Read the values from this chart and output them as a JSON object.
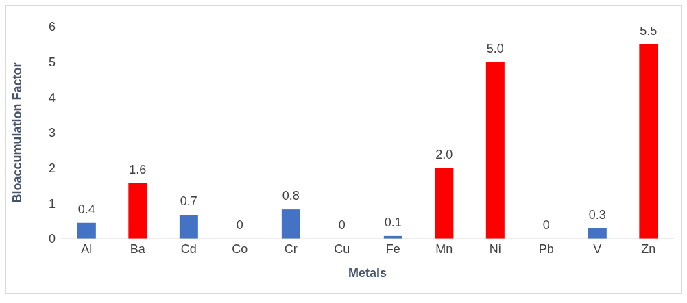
{
  "chart_data": {
    "type": "bar",
    "xlabel": "Metals",
    "ylabel": "Bioaccumulation Factor",
    "categories": [
      "Al",
      "Ba",
      "Cd",
      "Co",
      "Cr",
      "Cu",
      "Fe",
      "Mn",
      "Ni",
      "Pb",
      "V",
      "Zn"
    ],
    "values": [
      0.45,
      1.57,
      0.67,
      0,
      0.83,
      0,
      0.08,
      2.0,
      5.0,
      0,
      0.3,
      5.5
    ],
    "value_labels": [
      "0.4",
      "1.6",
      "0.7",
      "0",
      "0.8",
      "0",
      "0.1",
      "2.0",
      "5.0",
      "0",
      "0.3",
      "5.5"
    ],
    "colors": [
      "#4472c4",
      "#ff0000",
      "#4472c4",
      "#4472c4",
      "#4472c4",
      "#4472c4",
      "#4472c4",
      "#ff0000",
      "#ff0000",
      "#4472c4",
      "#4472c4",
      "#ff0000"
    ],
    "ylim": [
      0,
      6
    ],
    "yticks": [
      0,
      1,
      2,
      3,
      4,
      5,
      6
    ],
    "grid": false,
    "legend": false
  }
}
